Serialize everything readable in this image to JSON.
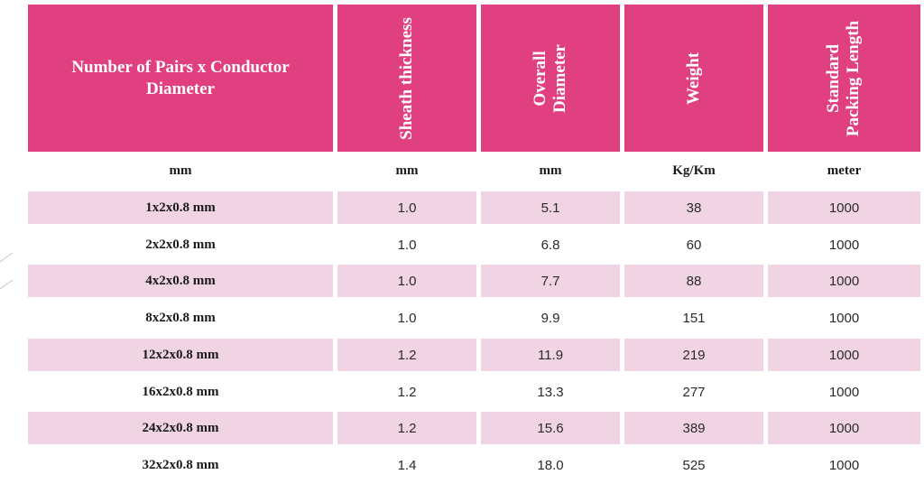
{
  "table": {
    "headers": [
      {
        "id": "pairs",
        "lines": [
          "Number of Pairs x Conductor",
          "Diameter"
        ]
      },
      {
        "id": "sheath",
        "lines": [
          "Sheath thickness"
        ]
      },
      {
        "id": "overall",
        "lines": [
          "Overall",
          "Diameter"
        ]
      },
      {
        "id": "weight",
        "lines": [
          "Weight"
        ]
      },
      {
        "id": "packing",
        "lines": [
          "Standard",
          "Packing Length"
        ]
      }
    ],
    "units": [
      "mm",
      "mm",
      "mm",
      "Kg/Km",
      "meter"
    ],
    "rows": [
      [
        "1x2x0.8 mm",
        "1.0",
        "5.1",
        "38",
        "1000"
      ],
      [
        "2x2x0.8 mm",
        "1.0",
        "6.8",
        "60",
        "1000"
      ],
      [
        "4x2x0.8 mm",
        "1.0",
        "7.7",
        "88",
        "1000"
      ],
      [
        "8x2x0.8 mm",
        "1.0",
        "9.9",
        "151",
        "1000"
      ],
      [
        "12x2x0.8 mm",
        "1.2",
        "11.9",
        "219",
        "1000"
      ],
      [
        "16x2x0.8 mm",
        "1.2",
        "13.3",
        "277",
        "1000"
      ],
      [
        "24x2x0.8 mm",
        "1.2",
        "15.6",
        "389",
        "1000"
      ],
      [
        "32x2x0.8 mm",
        "1.4",
        "18.0",
        "525",
        "1000"
      ]
    ]
  },
  "colors": {
    "header_bg": "#e0407f",
    "row_shade": "#f1d4e3"
  }
}
